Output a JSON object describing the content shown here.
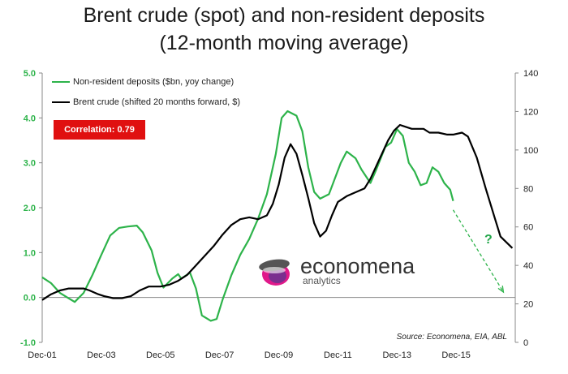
{
  "title_line1": "Brent crude (spot) and non-resident deposits",
  "title_line2": "(12-month moving average)",
  "correlation_label": "Correlation: 0.79",
  "source": "Source: Economena, EIA, ABL",
  "logo_name": "economena",
  "logo_sub": "analytics",
  "question_mark": "?",
  "colors": {
    "deposits": "#2db34a",
    "brent": "#000000",
    "correlation_bg": "#e01010",
    "arrow": "#2db34a"
  },
  "chart_data": {
    "type": "line",
    "x_tick_labels": [
      "Dec-01",
      "Dec-03",
      "Dec-05",
      "Dec-07",
      "Dec-09",
      "Dec-11",
      "Dec-13",
      "Dec-15"
    ],
    "left_axis": {
      "ylim": [
        -1.0,
        5.0
      ],
      "ticks": [
        "-1.0",
        "0.0",
        "1.0",
        "2.0",
        "3.0",
        "4.0",
        "5.0"
      ]
    },
    "right_axis": {
      "ylim": [
        0,
        140
      ],
      "ticks": [
        "0",
        "20",
        "40",
        "60",
        "80",
        "100",
        "120",
        "140"
      ]
    },
    "grid": false,
    "legend_placement": "top-left",
    "series": [
      {
        "name": "Non-resident deposits ($bn, yoy change)",
        "axis": "left",
        "points": [
          [
            2001.9,
            0.45
          ],
          [
            2002.2,
            0.32
          ],
          [
            2002.5,
            0.1
          ],
          [
            2002.8,
            -0.02
          ],
          [
            2003.0,
            -0.1
          ],
          [
            2003.3,
            0.1
          ],
          [
            2003.6,
            0.5
          ],
          [
            2003.9,
            0.95
          ],
          [
            2004.2,
            1.38
          ],
          [
            2004.5,
            1.55
          ],
          [
            2004.8,
            1.58
          ],
          [
            2005.1,
            1.6
          ],
          [
            2005.3,
            1.45
          ],
          [
            2005.6,
            1.05
          ],
          [
            2005.8,
            0.55
          ],
          [
            2006.0,
            0.22
          ],
          [
            2006.3,
            0.42
          ],
          [
            2006.5,
            0.52
          ],
          [
            2006.6,
            0.42
          ],
          [
            2006.9,
            0.55
          ],
          [
            2007.1,
            0.2
          ],
          [
            2007.3,
            -0.4
          ],
          [
            2007.6,
            -0.52
          ],
          [
            2007.8,
            -0.48
          ],
          [
            2008.0,
            -0.05
          ],
          [
            2008.3,
            0.5
          ],
          [
            2008.6,
            0.95
          ],
          [
            2008.9,
            1.3
          ],
          [
            2009.2,
            1.75
          ],
          [
            2009.5,
            2.3
          ],
          [
            2009.8,
            3.2
          ],
          [
            2010.0,
            4.0
          ],
          [
            2010.2,
            4.15
          ],
          [
            2010.5,
            4.05
          ],
          [
            2010.7,
            3.7
          ],
          [
            2010.9,
            2.9
          ],
          [
            2011.1,
            2.35
          ],
          [
            2011.3,
            2.2
          ],
          [
            2011.6,
            2.3
          ],
          [
            2011.8,
            2.65
          ],
          [
            2012.0,
            3.0
          ],
          [
            2012.2,
            3.25
          ],
          [
            2012.5,
            3.1
          ],
          [
            2012.7,
            2.85
          ],
          [
            2013.0,
            2.55
          ],
          [
            2013.2,
            2.85
          ],
          [
            2013.5,
            3.35
          ],
          [
            2013.7,
            3.45
          ],
          [
            2013.9,
            3.75
          ],
          [
            2014.1,
            3.6
          ],
          [
            2014.3,
            3.0
          ],
          [
            2014.5,
            2.8
          ],
          [
            2014.7,
            2.5
          ],
          [
            2014.9,
            2.55
          ],
          [
            2015.1,
            2.9
          ],
          [
            2015.3,
            2.8
          ],
          [
            2015.5,
            2.55
          ],
          [
            2015.7,
            2.4
          ],
          [
            2015.8,
            2.15
          ]
        ]
      },
      {
        "name": "Brent crude (shifted 20 months forward, $)",
        "axis": "right",
        "points": [
          [
            2001.9,
            22
          ],
          [
            2002.2,
            25
          ],
          [
            2002.5,
            27
          ],
          [
            2002.8,
            28
          ],
          [
            2003.0,
            28
          ],
          [
            2003.3,
            28
          ],
          [
            2003.5,
            27
          ],
          [
            2003.8,
            25
          ],
          [
            2004.0,
            24
          ],
          [
            2004.3,
            23
          ],
          [
            2004.6,
            23
          ],
          [
            2004.9,
            24
          ],
          [
            2005.2,
            27
          ],
          [
            2005.5,
            29
          ],
          [
            2005.9,
            29
          ],
          [
            2006.2,
            30
          ],
          [
            2006.5,
            32
          ],
          [
            2006.8,
            35
          ],
          [
            2007.1,
            40
          ],
          [
            2007.4,
            45
          ],
          [
            2007.7,
            50
          ],
          [
            2008.0,
            56
          ],
          [
            2008.3,
            61
          ],
          [
            2008.6,
            64
          ],
          [
            2008.9,
            65
          ],
          [
            2009.2,
            64
          ],
          [
            2009.5,
            66
          ],
          [
            2009.7,
            72
          ],
          [
            2009.9,
            82
          ],
          [
            2010.1,
            96
          ],
          [
            2010.3,
            103
          ],
          [
            2010.5,
            98
          ],
          [
            2010.7,
            87
          ],
          [
            2010.9,
            75
          ],
          [
            2011.1,
            62
          ],
          [
            2011.3,
            55
          ],
          [
            2011.5,
            58
          ],
          [
            2011.7,
            66
          ],
          [
            2011.9,
            73
          ],
          [
            2012.2,
            76
          ],
          [
            2012.5,
            78
          ],
          [
            2012.8,
            80
          ],
          [
            2013.0,
            85
          ],
          [
            2013.3,
            95
          ],
          [
            2013.6,
            105
          ],
          [
            2013.8,
            110
          ],
          [
            2014.0,
            113
          ],
          [
            2014.2,
            112
          ],
          [
            2014.4,
            111
          ],
          [
            2014.8,
            111
          ],
          [
            2015.0,
            109
          ],
          [
            2015.3,
            109
          ],
          [
            2015.6,
            108
          ],
          [
            2015.8,
            108
          ],
          [
            2016.1,
            109
          ],
          [
            2016.3,
            107
          ],
          [
            2016.6,
            96
          ],
          [
            2016.9,
            80
          ],
          [
            2017.2,
            65
          ],
          [
            2017.4,
            55
          ],
          [
            2017.6,
            52
          ],
          [
            2017.8,
            49
          ]
        ]
      }
    ],
    "trend_arrow": {
      "axis": "left",
      "from": [
        2015.8,
        1.95
      ],
      "to": [
        2017.5,
        0.12
      ]
    }
  }
}
